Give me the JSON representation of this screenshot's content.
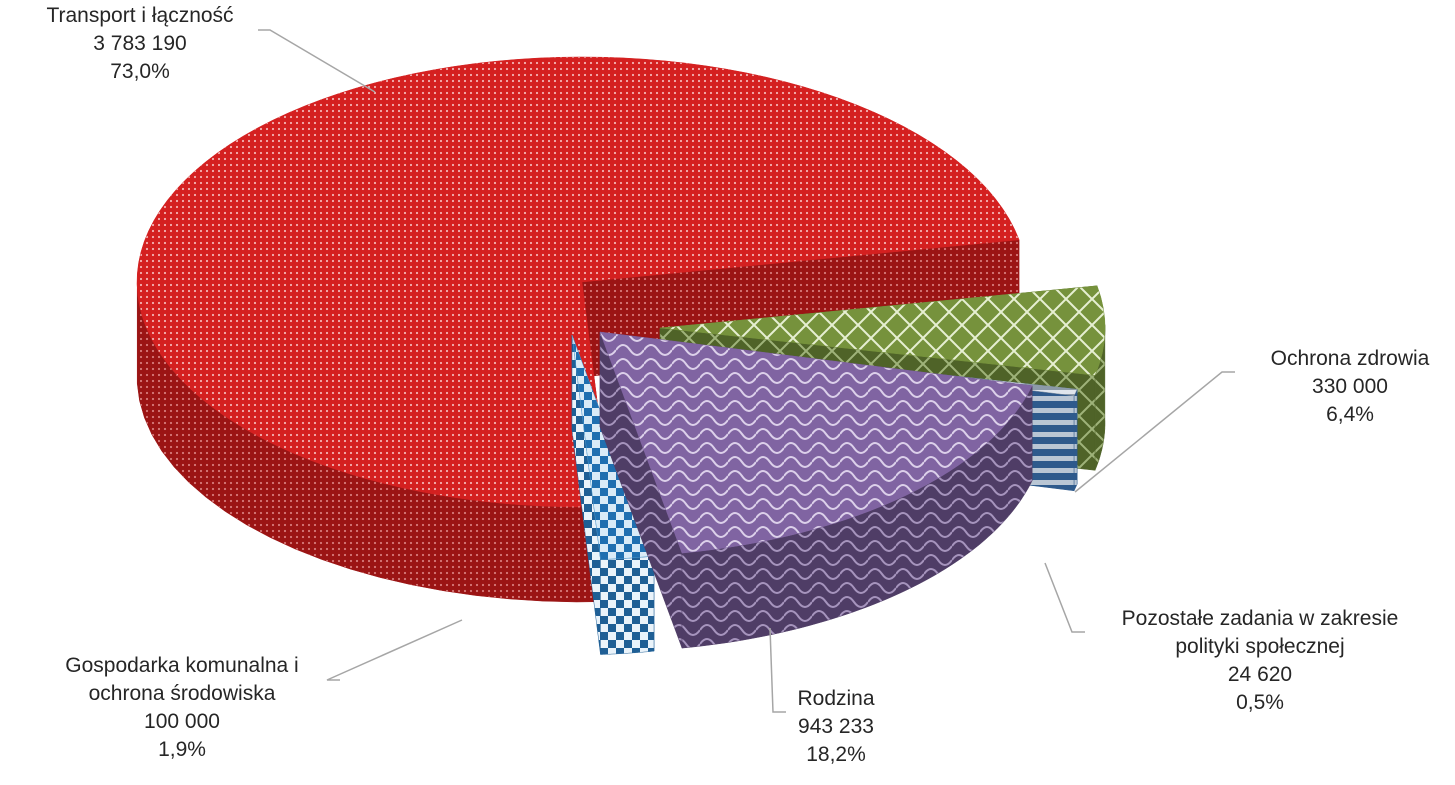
{
  "chart_data": {
    "type": "pie",
    "title": "",
    "variant": "3d-exploded",
    "slices": [
      {
        "label": "Transport i łączność",
        "value": "3 783 190",
        "percent": "73,0%",
        "color": "#d42020",
        "side_color": "#9b1414",
        "pattern": "dots"
      },
      {
        "label": "Ochrona zdrowia",
        "value": "330 000",
        "percent": "6,4%",
        "color": "#76923c",
        "side_color": "#4f6328",
        "pattern": "diamond-lattice"
      },
      {
        "label": "Pozostałe zadania w zakresie polityki społecznej",
        "value": "24 620",
        "percent": "0,5%",
        "color": "#8c9aa8",
        "side_color": "#2e5a8c",
        "pattern": "stripes"
      },
      {
        "label": "Rodzina",
        "value": "943 233",
        "percent": "18,2%",
        "color": "#8064a2",
        "side_color": "#4f3d66",
        "pattern": "waves"
      },
      {
        "label": "Gospodarka komunalna i ochrona środowiska",
        "value": "100 000",
        "percent": "1,9%",
        "color": "#4f9bd0",
        "side_color": "#1f5f95",
        "pattern": "checks"
      }
    ],
    "label_lines": [
      [
        "Transport i łączność",
        "3 783 190",
        "73,0%"
      ],
      [
        "Ochrona zdrowia",
        "330 000",
        "6,4%"
      ],
      [
        "Pozostałe zadania w zakresie",
        "polityki społecznej",
        "24 620",
        "0,5%"
      ],
      [
        "Rodzina",
        "943 233",
        "18,2%"
      ],
      [
        "Gospodarka komunalna i",
        "ochrona środowiska",
        "100 000",
        "1,9%"
      ]
    ]
  }
}
